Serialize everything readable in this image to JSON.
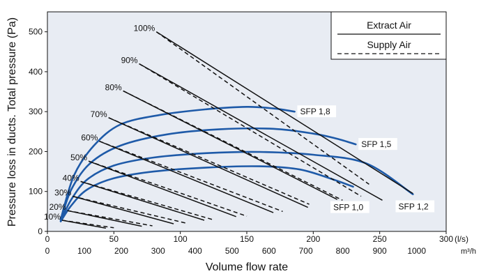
{
  "chart_data": {
    "type": "line",
    "ylabel": "Pressure loss in ducts. Total pressure (Pa)",
    "xlabel": "Volume flow rate",
    "x_unit_primary": "(l/s)",
    "x_unit_secondary": "m³/h",
    "xlim": [
      0,
      300
    ],
    "ylim": [
      0,
      550
    ],
    "x_ticks": [
      0,
      50,
      100,
      150,
      200,
      250,
      300
    ],
    "x_ticks_secondary": [
      {
        "label": "0",
        "x": 0
      },
      {
        "label": "100",
        "x": 27.8
      },
      {
        "label": "200",
        "x": 55.6
      },
      {
        "label": "300",
        "x": 83.3
      },
      {
        "label": "400",
        "x": 111.1
      },
      {
        "label": "500",
        "x": 138.9
      },
      {
        "label": "600",
        "x": 166.7
      },
      {
        "label": "700",
        "x": 194.4
      },
      {
        "label": "800",
        "x": 222.2
      },
      {
        "label": "900",
        "x": 250.0
      },
      {
        "label": "1000",
        "x": 277.8
      }
    ],
    "y_ticks": [
      0,
      100,
      200,
      300,
      400,
      500
    ],
    "grid": false,
    "legend": {
      "placement": "top-right",
      "entries": [
        {
          "name": "Extract Air",
          "style": "solid"
        },
        {
          "name": "Supply Air",
          "style": "dashed"
        }
      ]
    },
    "fan_curves": [
      {
        "label": "100%",
        "extract": [
          [
            82,
            500
          ],
          [
            275,
            95
          ]
        ],
        "supply": [
          [
            82,
            500
          ],
          [
            242,
            118
          ]
        ]
      },
      {
        "label": "90%",
        "extract": [
          [
            69,
            420
          ],
          [
            252,
            78
          ]
        ],
        "supply": [
          [
            69,
            420
          ],
          [
            236,
            88
          ]
        ]
      },
      {
        "label": "80%",
        "extract": [
          [
            57,
            352
          ],
          [
            218,
            80
          ]
        ],
        "supply": [
          [
            57,
            352
          ],
          [
            222,
            78
          ]
        ]
      },
      {
        "label": "70%",
        "extract": [
          [
            46,
            285
          ],
          [
            196,
            60
          ]
        ],
        "supply": [
          [
            46,
            285
          ],
          [
            197,
            68
          ]
        ]
      },
      {
        "label": "60%",
        "extract": [
          [
            39,
            226
          ],
          [
            170,
            47
          ]
        ],
        "supply": [
          [
            39,
            226
          ],
          [
            177,
            50
          ]
        ]
      },
      {
        "label": "50%",
        "extract": [
          [
            31,
            176
          ],
          [
            142,
            37
          ]
        ],
        "supply": [
          [
            31,
            176
          ],
          [
            150,
            38
          ]
        ]
      },
      {
        "label": "40%",
        "extract": [
          [
            25,
            125
          ],
          [
            118,
            28
          ]
        ],
        "supply": [
          [
            25,
            125
          ],
          [
            125,
            29
          ]
        ]
      },
      {
        "label": "30%",
        "extract": [
          [
            19,
            88
          ],
          [
            95,
            19
          ]
        ],
        "supply": [
          [
            19,
            88
          ],
          [
            104,
            21
          ]
        ]
      },
      {
        "label": "20%",
        "extract": [
          [
            15,
            52
          ],
          [
            71,
            13
          ]
        ],
        "supply": [
          [
            15,
            52
          ],
          [
            79,
            14
          ]
        ]
      },
      {
        "label": "10%",
        "extract": [
          [
            11,
            28
          ],
          [
            44,
            8
          ]
        ],
        "supply": [
          [
            11,
            28
          ],
          [
            50,
            9
          ]
        ]
      }
    ],
    "series": [
      {
        "name": "SFP 1,8",
        "values": [
          [
            10,
            30
          ],
          [
            20,
            140
          ],
          [
            35,
            215
          ],
          [
            55,
            268
          ],
          [
            85,
            292
          ],
          [
            120,
            306
          ],
          [
            150,
            312
          ],
          [
            170,
            308
          ],
          [
            186,
            300
          ]
        ]
      },
      {
        "name": "SFP 1,5",
        "values": [
          [
            10,
            28
          ],
          [
            18,
            105
          ],
          [
            32,
            170
          ],
          [
            55,
            215
          ],
          [
            90,
            243
          ],
          [
            130,
            256
          ],
          [
            170,
            257
          ],
          [
            200,
            245
          ],
          [
            218,
            232
          ],
          [
            232,
            218
          ]
        ]
      },
      {
        "name": "SFP 1,2",
        "values": [
          [
            10,
            26
          ],
          [
            18,
            80
          ],
          [
            30,
            130
          ],
          [
            50,
            165
          ],
          [
            80,
            185
          ],
          [
            120,
            196
          ],
          [
            160,
            199
          ],
          [
            200,
            192
          ],
          [
            240,
            170
          ],
          [
            275,
            93
          ]
        ]
      },
      {
        "name": "SFP 1,0",
        "values": [
          [
            10,
            25
          ],
          [
            18,
            65
          ],
          [
            30,
            105
          ],
          [
            50,
            133
          ],
          [
            80,
            150
          ],
          [
            120,
            160
          ],
          [
            160,
            163
          ],
          [
            190,
            155
          ],
          [
            215,
            130
          ],
          [
            230,
            112
          ]
        ]
      }
    ],
    "series_labels": [
      {
        "text": "SFP 1,8",
        "x": 188,
        "y": 300
      },
      {
        "text": "SFP 1,5",
        "x": 234,
        "y": 218
      },
      {
        "text": "SFP 1,2",
        "x": 262,
        "y": 62
      },
      {
        "text": "SFP 1,0",
        "x": 213,
        "y": 60
      }
    ],
    "colors": {
      "fan": "#111111",
      "sfp": "#1e5aa8",
      "plot_bg": "#e8ecf3"
    }
  }
}
